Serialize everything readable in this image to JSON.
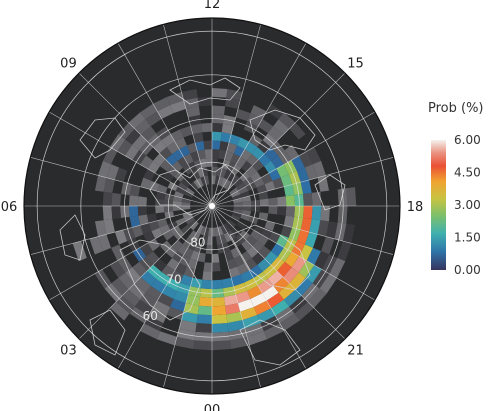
{
  "map": {
    "hour_labels": [
      {
        "text": "12",
        "mlt": 12
      },
      {
        "text": "09",
        "mlt": 9
      },
      {
        "text": "06",
        "mlt": 6
      },
      {
        "text": "03",
        "mlt": 3
      },
      {
        "text": "00",
        "mlt": 0
      },
      {
        "text": "21",
        "mlt": 21
      },
      {
        "text": "18",
        "mlt": 18
      },
      {
        "text": "15",
        "mlt": 15
      }
    ],
    "latitude_labels": [
      "80",
      "70",
      "60"
    ],
    "lat_circles": [
      50,
      60,
      70,
      80
    ],
    "outer_latitude": 47,
    "meridian_count": 24,
    "colors": {
      "background": "#2a2b2d",
      "coast": "#d8d8d8",
      "grid": "#e8e8e8"
    }
  },
  "chart_data": {
    "type": "heatmap",
    "title": "",
    "colorbar": {
      "title": "Prob (%)",
      "ticks": [
        "6.00",
        "4.50",
        "3.00",
        "1.50",
        "0.00"
      ],
      "range": [
        0,
        6
      ],
      "stops": [
        "#37345e",
        "#2e73a8",
        "#3fb0b0",
        "#7dc06a",
        "#c8c342",
        "#f0a431",
        "#ea5134",
        "#ea9180",
        "#f5f2ee"
      ]
    },
    "oval": {
      "description_units": "probability percent by magnetic latitude and MLT",
      "peak": {
        "mlt": 22.2,
        "mlat": 66.5,
        "value": 6.0
      },
      "bands": [
        {
          "mlt_start": 12,
          "mlt_end": 16,
          "mlat": 74,
          "value": 1.0
        },
        {
          "mlt_start": 16,
          "mlt_end": 18,
          "mlat": 71,
          "value": 2.6
        },
        {
          "mlt_start": 18,
          "mlt_end": 20,
          "mlat": 68.5,
          "value": 4.0
        },
        {
          "mlt_start": 20,
          "mlt_end": 21.5,
          "mlat": 67,
          "value": 5.2
        },
        {
          "mlt_start": 21.5,
          "mlt_end": 23,
          "mlat": 66.5,
          "value": 6.0
        },
        {
          "mlt_start": 23,
          "mlt_end": 24,
          "mlat": 67,
          "value": 4.8
        },
        {
          "mlt_start": 0,
          "mlt_end": 1,
          "mlat": 68,
          "value": 3.0
        },
        {
          "mlt_start": 1,
          "mlt_end": 3,
          "mlat": 69.5,
          "value": 1.3
        },
        {
          "mlt_start": 3,
          "mlt_end": 6,
          "mlat": 71,
          "value": 0.6
        },
        {
          "mlt_start": 6,
          "mlt_end": 9,
          "mlat": 74,
          "value": 0.4
        },
        {
          "mlt_start": 9,
          "mlt_end": 12,
          "mlat": 76,
          "value": 0.5
        }
      ]
    }
  }
}
